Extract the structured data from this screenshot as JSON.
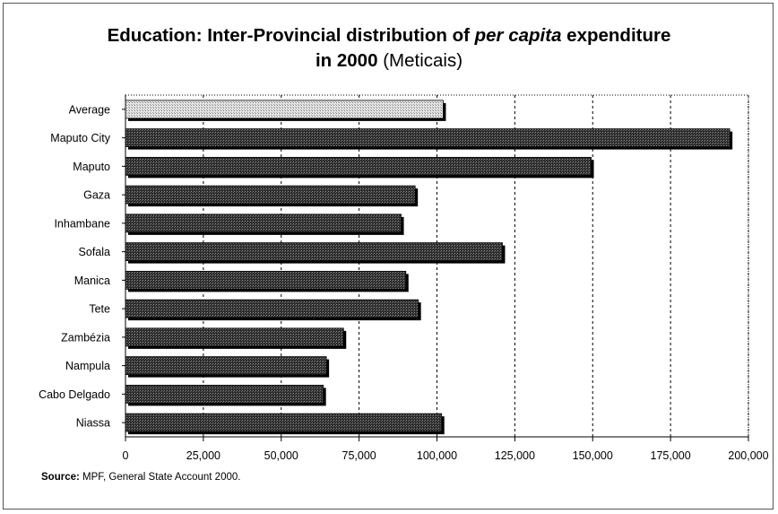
{
  "chart_data": {
    "type": "bar",
    "orientation": "horizontal",
    "title": {
      "line1_prefix": "Education: Inter-Provincial distribution of ",
      "line1_italic": "per capita",
      "line1_suffix": " expenditure",
      "line2_bold": "in 2000",
      "line2_unit": "(Meticais)"
    },
    "categories": [
      "Average",
      "Maputo City",
      "Maputo",
      "Gaza",
      "Inhambane",
      "Sofala",
      "Manica",
      "Tete",
      "Zambézia",
      "Nampula",
      "Cabo Delgado",
      "Niassa"
    ],
    "values": [
      102000,
      194000,
      149500,
      93000,
      88500,
      121000,
      90000,
      94000,
      70000,
      64500,
      63500,
      101500
    ],
    "highlight": [
      "Average"
    ],
    "xlim": [
      0,
      200000
    ],
    "xticks": [
      0,
      25000,
      50000,
      75000,
      100000,
      125000,
      150000,
      175000,
      200000
    ],
    "xtick_labels": [
      "0",
      "25,000",
      "50,000",
      "75,000",
      "100,000",
      "125,000",
      "150,000",
      "175,000",
      "200,000"
    ],
    "grid": "vertical dashed",
    "colors": {
      "bar": "#3a3a3a",
      "average_bar": "#c8c8c8",
      "grid": "#000000"
    }
  },
  "source": {
    "label": "Source:",
    "text": " MPF, General State Account 2000."
  }
}
